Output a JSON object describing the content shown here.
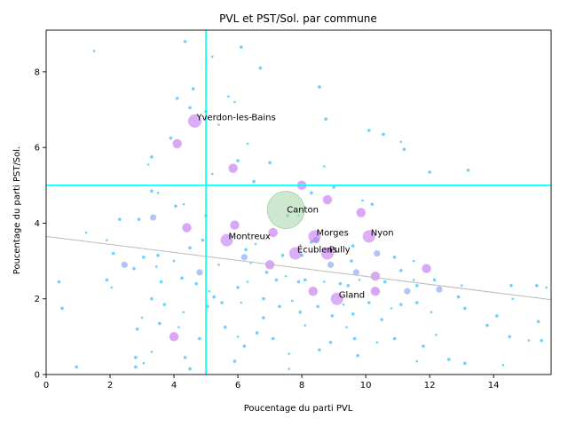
{
  "chart_data": {
    "type": "scatter",
    "title": "PVL et PST/Sol. par commune",
    "xlabel": "Poucentage du parti PVL",
    "ylabel": "Poucentage du parti PST/Sol.",
    "xlim": [
      0,
      15.8
    ],
    "ylim": [
      0,
      9.1
    ],
    "xticks": [
      "0",
      "2",
      "4",
      "6",
      "8",
      "10",
      "12",
      "14"
    ],
    "yticks": [
      "0",
      "2",
      "4",
      "6",
      "8"
    ],
    "grid": false,
    "colors": {
      "small_points": "#4fc3f7",
      "medium_points": "#7b9cf5",
      "highlight_points": "#c06cf0",
      "canton_point": "#a5d6a7",
      "reference_lines": "#00ffff",
      "trend_line": "#bbbbbb",
      "canton_label": "#008000"
    },
    "reference_lines": {
      "x": 5.0,
      "y": 5.0
    },
    "trend_line": {
      "x": [
        0,
        15.8
      ],
      "y": [
        3.65,
        1.98
      ]
    },
    "canton": {
      "label": "Canton",
      "x": 7.5,
      "y": 4.35
    },
    "highlighted": [
      {
        "label": "Yverdon-les-Bains",
        "x": 4.65,
        "y": 6.7
      },
      {
        "label": "Montreux",
        "x": 5.65,
        "y": 3.55
      },
      {
        "label": "Morges",
        "x": 8.4,
        "y": 3.65
      },
      {
        "label": "Nyon",
        "x": 10.1,
        "y": 3.65
      },
      {
        "label": "Pully",
        "x": 8.8,
        "y": 3.2
      },
      {
        "label": "Écublens",
        "x": 7.8,
        "y": 3.2
      },
      {
        "label": "Gland",
        "x": 9.1,
        "y": 2.0
      }
    ],
    "medium_points": [
      [
        4.1,
        6.1
      ],
      [
        5.85,
        5.45
      ],
      [
        8.0,
        5.0
      ],
      [
        8.8,
        4.62
      ],
      [
        9.85,
        4.28
      ],
      [
        7.1,
        3.75
      ],
      [
        4.4,
        3.88
      ],
      [
        5.9,
        3.95
      ],
      [
        8.45,
        3.55
      ],
      [
        10.35,
        3.2
      ],
      [
        6.2,
        3.1
      ],
      [
        7.0,
        2.9
      ],
      [
        11.9,
        2.8
      ],
      [
        3.35,
        4.15
      ],
      [
        2.45,
        2.9
      ],
      [
        4.8,
        2.7
      ],
      [
        10.3,
        2.6
      ],
      [
        10.3,
        2.2
      ],
      [
        8.35,
        2.2
      ],
      [
        11.3,
        2.2
      ],
      [
        12.3,
        2.25
      ],
      [
        4.0,
        1.0
      ],
      [
        9.7,
        2.7
      ],
      [
        8.9,
        2.9
      ]
    ],
    "small_points": [
      [
        1.5,
        8.55
      ],
      [
        4.35,
        8.8
      ],
      [
        6.1,
        8.65
      ],
      [
        5.2,
        8.4
      ],
      [
        6.7,
        8.1
      ],
      [
        4.1,
        7.3
      ],
      [
        5.7,
        7.35
      ],
      [
        4.6,
        7.55
      ],
      [
        8.55,
        7.6
      ],
      [
        5.9,
        7.2
      ],
      [
        4.5,
        7.05
      ],
      [
        5.0,
        6.95
      ],
      [
        5.4,
        6.6
      ],
      [
        8.75,
        6.75
      ],
      [
        3.9,
        6.25
      ],
      [
        6.3,
        6.1
      ],
      [
        10.1,
        6.45
      ],
      [
        10.55,
        6.35
      ],
      [
        11.1,
        6.15
      ],
      [
        11.2,
        5.95
      ],
      [
        3.3,
        5.75
      ],
      [
        3.2,
        5.55
      ],
      [
        6.0,
        5.65
      ],
      [
        7.0,
        5.6
      ],
      [
        8.7,
        5.5
      ],
      [
        12.0,
        5.35
      ],
      [
        13.2,
        5.4
      ],
      [
        5.2,
        5.3
      ],
      [
        6.5,
        5.1
      ],
      [
        3.3,
        4.85
      ],
      [
        3.5,
        4.8
      ],
      [
        8.3,
        4.8
      ],
      [
        9.0,
        4.95
      ],
      [
        9.9,
        4.6
      ],
      [
        10.2,
        4.5
      ],
      [
        4.05,
        4.45
      ],
      [
        4.3,
        4.5
      ],
      [
        5.0,
        4.2
      ],
      [
        7.55,
        4.2
      ],
      [
        7.9,
        4.2
      ],
      [
        2.3,
        4.1
      ],
      [
        2.9,
        4.1
      ],
      [
        1.9,
        3.55
      ],
      [
        4.5,
        3.35
      ],
      [
        8.3,
        3.5
      ],
      [
        1.25,
        3.75
      ],
      [
        2.1,
        3.2
      ],
      [
        6.25,
        3.3
      ],
      [
        6.55,
        3.45
      ],
      [
        9.6,
        3.4
      ],
      [
        10.9,
        3.1
      ],
      [
        11.5,
        3.0
      ],
      [
        3.05,
        3.1
      ],
      [
        3.5,
        3.15
      ],
      [
        4.0,
        3.0
      ],
      [
        8.0,
        3.15
      ],
      [
        7.4,
        3.15
      ],
      [
        6.4,
        2.95
      ],
      [
        9.55,
        3.0
      ],
      [
        2.75,
        2.8
      ],
      [
        3.45,
        2.85
      ],
      [
        4.25,
        2.55
      ],
      [
        4.7,
        2.4
      ],
      [
        5.1,
        2.2
      ],
      [
        5.25,
        2.05
      ],
      [
        6.0,
        2.3
      ],
      [
        6.3,
        2.45
      ],
      [
        6.9,
        2.7
      ],
      [
        7.2,
        2.5
      ],
      [
        7.5,
        2.6
      ],
      [
        7.9,
        2.45
      ],
      [
        8.1,
        2.5
      ],
      [
        8.7,
        2.45
      ],
      [
        9.2,
        2.4
      ],
      [
        9.45,
        2.35
      ],
      [
        9.8,
        2.5
      ],
      [
        10.6,
        2.45
      ],
      [
        11.1,
        2.75
      ],
      [
        11.5,
        2.5
      ],
      [
        11.6,
        2.35
      ],
      [
        12.15,
        2.5
      ],
      [
        13.0,
        2.35
      ],
      [
        14.55,
        2.35
      ],
      [
        15.35,
        2.35
      ],
      [
        15.65,
        2.3
      ],
      [
        3.3,
        2.0
      ],
      [
        3.7,
        1.85
      ],
      [
        4.3,
        1.65
      ],
      [
        5.05,
        1.8
      ],
      [
        5.5,
        1.9
      ],
      [
        6.1,
        1.9
      ],
      [
        6.8,
        2.0
      ],
      [
        7.3,
        1.8
      ],
      [
        7.7,
        1.95
      ],
      [
        8.5,
        1.8
      ],
      [
        8.95,
        1.55
      ],
      [
        9.3,
        1.85
      ],
      [
        9.6,
        1.6
      ],
      [
        10.5,
        1.45
      ],
      [
        10.8,
        1.75
      ],
      [
        11.1,
        1.85
      ],
      [
        11.6,
        1.9
      ],
      [
        12.05,
        1.65
      ],
      [
        13.1,
        1.75
      ],
      [
        14.1,
        1.55
      ],
      [
        14.6,
        2.0
      ],
      [
        15.4,
        1.4
      ],
      [
        1.9,
        2.5
      ],
      [
        3.0,
        1.5
      ],
      [
        3.55,
        1.35
      ],
      [
        2.85,
        1.2
      ],
      [
        4.15,
        1.25
      ],
      [
        4.8,
        0.95
      ],
      [
        5.6,
        1.25
      ],
      [
        6.0,
        1.0
      ],
      [
        6.6,
        1.1
      ],
      [
        7.1,
        0.95
      ],
      [
        8.1,
        1.3
      ],
      [
        8.9,
        0.85
      ],
      [
        9.65,
        0.95
      ],
      [
        10.35,
        0.85
      ],
      [
        10.9,
        0.95
      ],
      [
        11.8,
        0.75
      ],
      [
        12.2,
        1.05
      ],
      [
        13.8,
        1.3
      ],
      [
        14.5,
        1.0
      ],
      [
        15.1,
        0.9
      ],
      [
        15.5,
        0.9
      ],
      [
        2.8,
        0.45
      ],
      [
        3.3,
        0.6
      ],
      [
        4.35,
        0.45
      ],
      [
        6.2,
        0.75
      ],
      [
        7.6,
        0.55
      ],
      [
        8.55,
        0.65
      ],
      [
        9.75,
        0.5
      ],
      [
        11.6,
        0.35
      ],
      [
        12.6,
        0.4
      ],
      [
        13.1,
        0.3
      ],
      [
        14.3,
        0.25
      ],
      [
        0.95,
        0.2
      ],
      [
        2.8,
        0.2
      ],
      [
        3.05,
        0.3
      ],
      [
        4.5,
        0.15
      ],
      [
        5.9,
        0.35
      ],
      [
        7.6,
        0.15
      ],
      [
        0.4,
        2.45
      ],
      [
        0.5,
        1.75
      ],
      [
        2.05,
        2.3
      ],
      [
        3.6,
        2.45
      ],
      [
        4.9,
        3.55
      ],
      [
        5.4,
        2.9
      ],
      [
        6.8,
        1.5
      ],
      [
        7.95,
        1.65
      ],
      [
        9.4,
        1.25
      ],
      [
        10.1,
        1.9
      ],
      [
        12.9,
        2.05
      ]
    ]
  }
}
